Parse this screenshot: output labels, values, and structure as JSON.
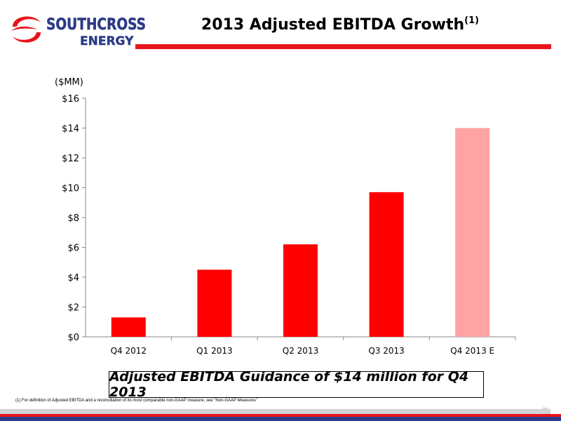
{
  "logo": {
    "line1": "SOUTHCROSS",
    "line2": "ENERGY",
    "icon": "southcross-swirl-icon",
    "colors": {
      "red": "#e8141b",
      "blue": "#2c3a87"
    }
  },
  "header": {
    "title": "2013 Adjusted EBITDA Growth",
    "title_superscript": "(1)"
  },
  "chart_data": {
    "type": "bar",
    "ylabel": "($MM)",
    "categories": [
      "Q4 2012",
      "Q1 2013",
      "Q2 2013",
      "Q3 2013",
      "Q4 2013 E"
    ],
    "values": [
      1.3,
      4.5,
      6.2,
      9.7,
      14.0
    ],
    "ylim": [
      0,
      16
    ],
    "yticks": [
      0,
      2,
      4,
      6,
      8,
      10,
      12,
      14,
      16
    ],
    "ytick_labels": [
      "$0",
      "$2",
      "$4",
      "$6",
      "$8",
      "$10",
      "$12",
      "$14",
      "$16"
    ],
    "colors": [
      "#ff0000",
      "#ff0000",
      "#ff0000",
      "#ff0000",
      "#ffa3a3"
    ],
    "grid": false
  },
  "callout": {
    "text": "Adjusted EBITDA Guidance of $14 million for Q4 2013"
  },
  "footnote": "(1) For definition of Adjusted EBITDA and a reconciliation of its most comparable non-GAAP measure, see “Non-GAAP Measures”",
  "page_number": "21"
}
